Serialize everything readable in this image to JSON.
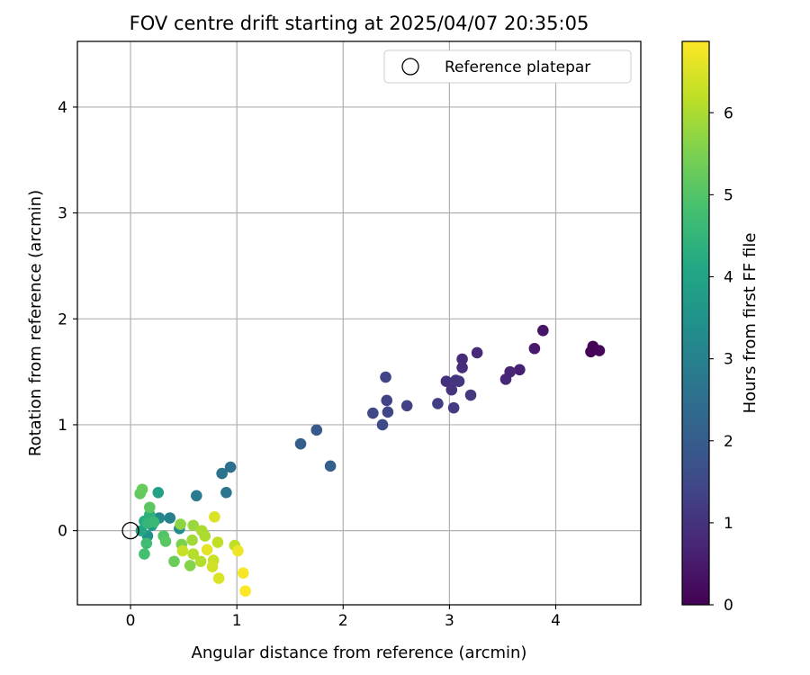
{
  "chart_data": {
    "type": "scatter",
    "title": "FOV centre drift starting at 2025/04/07 20:35:05",
    "xlabel": "Angular distance from reference (arcmin)",
    "ylabel": "Rotation from reference (arcmin)",
    "xlim": [
      -0.5,
      4.8
    ],
    "ylim": [
      -0.7,
      4.62
    ],
    "xticks": [
      0,
      1,
      2,
      3,
      4
    ],
    "yticks": [
      0,
      1,
      2,
      3,
      4
    ],
    "grid": true,
    "legend": {
      "placement": "top-right",
      "entries": [
        "Reference platepar"
      ]
    },
    "reference_point": {
      "x": 0,
      "y": 0,
      "label": "Reference platepar"
    },
    "colorbar": {
      "label": "Hours from first FF file",
      "range": [
        0,
        6.87
      ],
      "ticks": [
        0,
        1,
        2,
        3,
        4,
        5,
        6
      ],
      "colormap": "viridis"
    },
    "points": [
      {
        "x": 4.33,
        "y": 1.69,
        "h": 0.02
      },
      {
        "x": 4.35,
        "y": 1.74,
        "h": 0.05
      },
      {
        "x": 4.41,
        "y": 1.7,
        "h": 0.1
      },
      {
        "x": 3.88,
        "y": 1.89,
        "h": 0.4
      },
      {
        "x": 3.8,
        "y": 1.72,
        "h": 0.5
      },
      {
        "x": 3.66,
        "y": 1.52,
        "h": 0.6
      },
      {
        "x": 3.57,
        "y": 1.5,
        "h": 0.7
      },
      {
        "x": 3.53,
        "y": 1.43,
        "h": 0.75
      },
      {
        "x": 3.26,
        "y": 1.68,
        "h": 0.8
      },
      {
        "x": 3.12,
        "y": 1.62,
        "h": 0.85
      },
      {
        "x": 3.12,
        "y": 1.54,
        "h": 0.9
      },
      {
        "x": 2.97,
        "y": 1.41,
        "h": 0.95
      },
      {
        "x": 3.02,
        "y": 1.33,
        "h": 1.0
      },
      {
        "x": 3.06,
        "y": 1.42,
        "h": 1.05
      },
      {
        "x": 3.09,
        "y": 1.41,
        "h": 1.1
      },
      {
        "x": 3.2,
        "y": 1.28,
        "h": 1.15
      },
      {
        "x": 3.04,
        "y": 1.16,
        "h": 1.2
      },
      {
        "x": 2.89,
        "y": 1.2,
        "h": 1.25
      },
      {
        "x": 2.6,
        "y": 1.18,
        "h": 1.3
      },
      {
        "x": 2.41,
        "y": 1.23,
        "h": 1.35
      },
      {
        "x": 2.4,
        "y": 1.45,
        "h": 1.4
      },
      {
        "x": 2.42,
        "y": 1.12,
        "h": 1.45
      },
      {
        "x": 2.28,
        "y": 1.11,
        "h": 1.5
      },
      {
        "x": 2.37,
        "y": 1.0,
        "h": 1.55
      },
      {
        "x": 1.75,
        "y": 0.95,
        "h": 1.9
      },
      {
        "x": 1.6,
        "y": 0.82,
        "h": 2.0
      },
      {
        "x": 1.88,
        "y": 0.61,
        "h": 2.1
      },
      {
        "x": 0.94,
        "y": 0.6,
        "h": 2.5
      },
      {
        "x": 0.86,
        "y": 0.54,
        "h": 2.6
      },
      {
        "x": 0.9,
        "y": 0.36,
        "h": 2.7
      },
      {
        "x": 0.62,
        "y": 0.33,
        "h": 2.8
      },
      {
        "x": 0.37,
        "y": 0.12,
        "h": 3.0
      },
      {
        "x": 0.27,
        "y": 0.12,
        "h": 3.2
      },
      {
        "x": 0.46,
        "y": 0.02,
        "h": 3.3
      },
      {
        "x": 0.16,
        "y": -0.05,
        "h": 3.5
      },
      {
        "x": 0.2,
        "y": 0.05,
        "h": 3.7
      },
      {
        "x": 0.26,
        "y": 0.36,
        "h": 3.9
      },
      {
        "x": 0.1,
        "y": 0.0,
        "h": 4.0
      },
      {
        "x": 0.13,
        "y": 0.09,
        "h": 4.2
      },
      {
        "x": 0.18,
        "y": 0.15,
        "h": 4.4
      },
      {
        "x": 0.16,
        "y": 0.07,
        "h": 4.5
      },
      {
        "x": 0.22,
        "y": 0.08,
        "h": 4.6
      },
      {
        "x": 0.15,
        "y": -0.12,
        "h": 4.7
      },
      {
        "x": 0.13,
        "y": -0.22,
        "h": 4.8
      },
      {
        "x": 0.31,
        "y": -0.05,
        "h": 5.0
      },
      {
        "x": 0.33,
        "y": -0.1,
        "h": 5.1
      },
      {
        "x": 0.18,
        "y": 0.22,
        "h": 5.1
      },
      {
        "x": 0.09,
        "y": 0.35,
        "h": 5.2
      },
      {
        "x": 0.11,
        "y": 0.39,
        "h": 5.25
      },
      {
        "x": 0.41,
        "y": -0.29,
        "h": 5.3
      },
      {
        "x": 0.48,
        "y": -0.13,
        "h": 5.5
      },
      {
        "x": 0.56,
        "y": -0.33,
        "h": 5.6
      },
      {
        "x": 0.47,
        "y": 0.06,
        "h": 5.7
      },
      {
        "x": 0.59,
        "y": 0.05,
        "h": 5.8
      },
      {
        "x": 0.58,
        "y": -0.09,
        "h": 5.9
      },
      {
        "x": 0.7,
        "y": -0.05,
        "h": 6.0
      },
      {
        "x": 0.67,
        "y": 0.0,
        "h": 6.0
      },
      {
        "x": 0.59,
        "y": -0.22,
        "h": 6.1
      },
      {
        "x": 0.66,
        "y": -0.29,
        "h": 6.1
      },
      {
        "x": 0.82,
        "y": -0.11,
        "h": 6.2
      },
      {
        "x": 0.98,
        "y": -0.14,
        "h": 6.2
      },
      {
        "x": 0.49,
        "y": -0.19,
        "h": 6.3
      },
      {
        "x": 0.78,
        "y": -0.28,
        "h": 6.3
      },
      {
        "x": 0.77,
        "y": -0.34,
        "h": 6.4
      },
      {
        "x": 0.83,
        "y": -0.45,
        "h": 6.5
      },
      {
        "x": 0.79,
        "y": 0.13,
        "h": 6.5
      },
      {
        "x": 0.72,
        "y": -0.18,
        "h": 6.6
      },
      {
        "x": 1.01,
        "y": -0.19,
        "h": 6.7
      },
      {
        "x": 1.06,
        "y": -0.4,
        "h": 6.8
      },
      {
        "x": 1.08,
        "y": -0.57,
        "h": 6.85
      }
    ]
  }
}
